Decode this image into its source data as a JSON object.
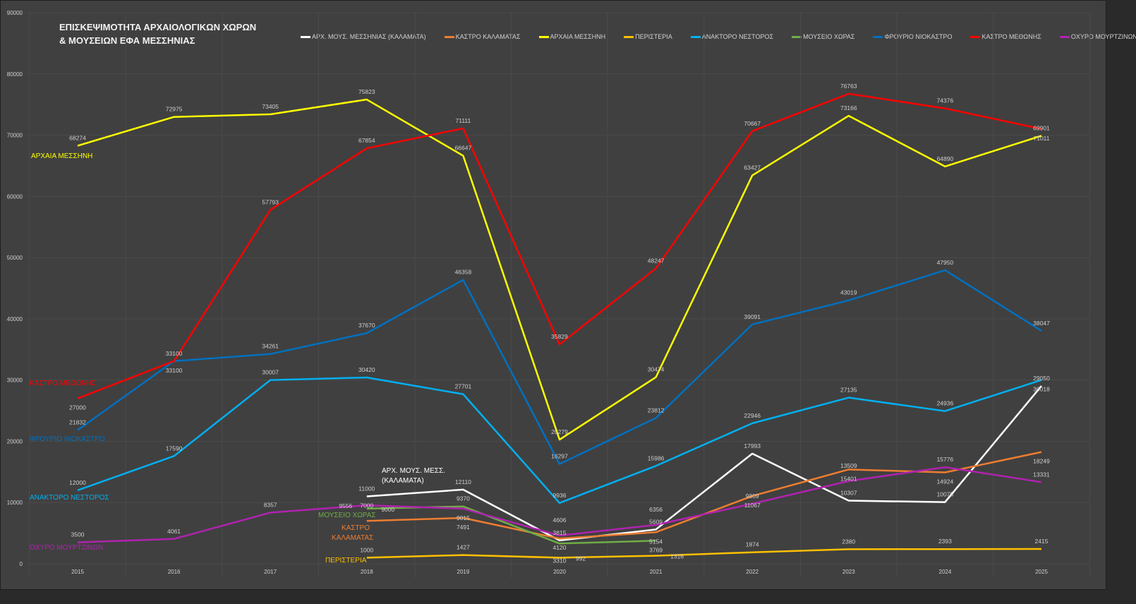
{
  "chart_data": {
    "type": "line",
    "title": [
      "ΕΠΙΣΚΕΨΙΜΟΤΗΤΑ ΑΡΧΑΙΟΛΟΓΙΚΩΝ ΧΩΡΩΝ",
      "& ΜΟΥΣΕΙΩΝ ΕΦΑ ΜΕΣΣΗΝΙΑΣ"
    ],
    "xlabel": "",
    "ylabel": "",
    "categories": [
      "2015",
      "2016",
      "2017",
      "2018",
      "2019",
      "2020",
      "2021",
      "2022",
      "2023",
      "2024",
      "2025"
    ],
    "ylim": [
      0,
      90000
    ],
    "yticks": [
      "0",
      "10000",
      "20000",
      "30000",
      "40000",
      "50000",
      "60000",
      "70000",
      "80000",
      "90000"
    ],
    "grid": true,
    "legend_position": "top",
    "background": "#404040",
    "series": [
      {
        "name": "ΑΡΧ. ΜΟΥΣ. ΜΕΣΣΗΝΙΑΣ (ΚΑΛΑΜΑΤΑ)",
        "color": "#ffffff",
        "values": [
          null,
          null,
          null,
          11000,
          12110,
          3815,
          5609,
          17993,
          10307,
          10075,
          29050
        ]
      },
      {
        "name": "ΚΑΣΤΡΟ ΚΑΛΑΜΑΤΑΣ",
        "color": "#ed7d31",
        "values": [
          null,
          null,
          null,
          7000,
          7491,
          4120,
          5154,
          11067,
          15401,
          14924,
          18249
        ]
      },
      {
        "name": "ΑΡΧΑΙΑ ΜΕΣΣΗΝΗ",
        "color": "#ffff00",
        "values": [
          68274,
          72975,
          73405,
          75823,
          66647,
          20279,
          30474,
          63427,
          73166,
          64890,
          69901
        ]
      },
      {
        "name": "ΠΕΡΙΣΤΕΡΙΑ",
        "color": "#ffc000",
        "values": [
          null,
          null,
          null,
          1000,
          1427,
          992,
          1316,
          1874,
          2380,
          2393,
          2415
        ]
      },
      {
        "name": "ΑΝΑΚΤΟΡΟ ΝΕΣΤΟΡΟΣ",
        "color": "#00b0f0",
        "values": [
          12000,
          17590,
          30007,
          30420,
          27701,
          9936,
          15986,
          22946,
          27135,
          24936,
          30018
        ]
      },
      {
        "name": "ΜΟΥΣΕΙΟ ΧΩΡΑΣ",
        "color": "#70ad47",
        "values": [
          null,
          null,
          null,
          9000,
          9370,
          3310,
          3769,
          null,
          null,
          null,
          null
        ]
      },
      {
        "name": "ΦΡΟΥΡΙΟ ΝΙΟΚΑΣΤΡΟ",
        "color": "#0070c0",
        "values": [
          21832,
          33100,
          34261,
          37670,
          46358,
          16297,
          23812,
          39091,
          43019,
          47950,
          38047
        ]
      },
      {
        "name": "ΚΑΣΤΡΟ ΜΕΘΩΝΗΣ",
        "color": "#ff0000",
        "values": [
          27000,
          33100,
          57793,
          67854,
          71111,
          35829,
          48247,
          70667,
          76763,
          74376,
          71011
        ]
      },
      {
        "name": "ΟΧΥΡΟ ΜΟΥΡΤΖΙΝΩΝ",
        "color": "#b022b0",
        "values": [
          3500,
          4061,
          8357,
          9556,
          9015,
          4606,
          6356,
          9809,
          13509,
          15776,
          13331
        ]
      }
    ],
    "annotations": [
      {
        "text": "ΑΡΧΑΙΑ ΜΕΣΣΗΝΗ",
        "series": 2
      },
      {
        "text": "ΚΑΣΤΡΟ ΜΕΘΩΝΗΣ",
        "series": 7
      },
      {
        "text": "ΦΡΟΥΡΙΟ ΝΙΟΚΑΣΤΡΟ",
        "series": 6
      },
      {
        "text": "ΑΝΑΚΤΟΡΟ ΝΕΣΤΟΡΟΣ",
        "series": 4
      },
      {
        "text": "ΟΧΥΡΟ ΜΟΥΡΤΖΙΝΩΝ",
        "series": 8
      },
      {
        "text": "ΑΡΧ. ΜΟΥΣ. ΜΕΣΣ.",
        "series": 0
      },
      {
        "text": "(ΚΑΛΑΜΑΤΑ)",
        "series": 0
      },
      {
        "text": "ΜΟΥΣΕΙΟ ΧΩΡΑΣ",
        "series": 5
      },
      {
        "text": "ΚΑΣΤΡΟ",
        "series": 1
      },
      {
        "text": "ΚΑΛΑΜΑΤΑΣ",
        "series": 1
      },
      {
        "text": "ΠΕΡΙΣΤΕΡΙΑ",
        "series": 3
      }
    ]
  }
}
